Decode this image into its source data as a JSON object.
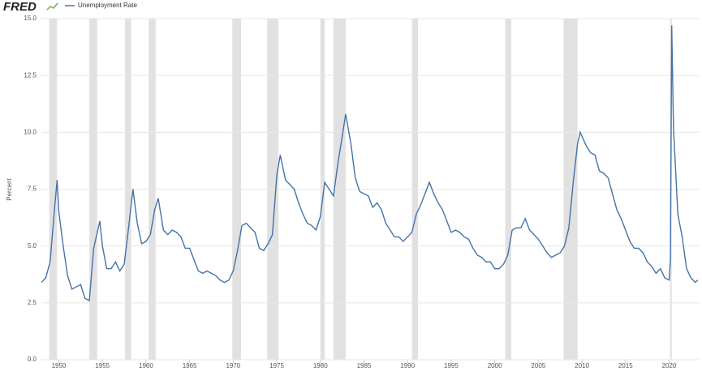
{
  "chart_data": {
    "type": "line",
    "logo": "FRED",
    "y_label": "Percent",
    "xlim": [
      1948,
      2023.4
    ],
    "ylim": [
      0,
      15
    ],
    "xticks": [
      1950,
      1955,
      1960,
      1965,
      1970,
      1975,
      1980,
      1985,
      1990,
      1995,
      2000,
      2005,
      2010,
      2015,
      2020
    ],
    "yticks": [
      {
        "value": 0,
        "label": "0.0"
      },
      {
        "value": 2.5,
        "label": "2.5"
      },
      {
        "value": 5,
        "label": "5.0"
      },
      {
        "value": 7.5,
        "label": "7.5"
      },
      {
        "value": 10,
        "label": "10.0"
      },
      {
        "value": 12.5,
        "label": "12.5"
      },
      {
        "value": 15,
        "label": "15.0"
      }
    ],
    "grid": true,
    "recession_color": "#e1e1e1",
    "recessions": [
      [
        1948.9,
        1949.8
      ],
      [
        1953.5,
        1954.4
      ],
      [
        1957.6,
        1958.3
      ],
      [
        1960.3,
        1961.1
      ],
      [
        1969.9,
        1970.9
      ],
      [
        1973.9,
        1975.2
      ],
      [
        1980.0,
        1980.5
      ],
      [
        1981.5,
        1982.9
      ],
      [
        1990.5,
        1991.2
      ],
      [
        2001.2,
        2001.9
      ],
      [
        2007.9,
        2009.5
      ],
      [
        2020.1,
        2020.3
      ]
    ],
    "series": [
      {
        "name": "Unemployment Rate",
        "color": "#4572a7",
        "x": [
          1948.0,
          1948.5,
          1949.0,
          1949.5,
          1949.8,
          1950.0,
          1950.5,
          1951.0,
          1951.5,
          1952.0,
          1952.5,
          1953.0,
          1953.5,
          1954.0,
          1954.7,
          1955.0,
          1955.5,
          1956.0,
          1956.5,
          1957.0,
          1957.5,
          1958.0,
          1958.5,
          1959.0,
          1959.5,
          1960.0,
          1960.5,
          1961.0,
          1961.4,
          1962.0,
          1962.5,
          1963.0,
          1963.5,
          1964.0,
          1964.5,
          1965.0,
          1965.5,
          1966.0,
          1966.5,
          1967.0,
          1967.5,
          1968.0,
          1968.5,
          1969.0,
          1969.5,
          1970.0,
          1970.5,
          1971.0,
          1971.5,
          1972.0,
          1972.5,
          1973.0,
          1973.5,
          1974.0,
          1974.5,
          1975.0,
          1975.4,
          1976.0,
          1976.5,
          1977.0,
          1977.5,
          1978.0,
          1978.5,
          1979.0,
          1979.5,
          1980.0,
          1980.5,
          1981.0,
          1981.5,
          1982.0,
          1982.5,
          1982.9,
          1983.5,
          1984.0,
          1984.5,
          1985.0,
          1985.5,
          1986.0,
          1986.5,
          1987.0,
          1987.5,
          1988.0,
          1988.5,
          1989.0,
          1989.5,
          1990.0,
          1990.5,
          1991.0,
          1991.5,
          1992.0,
          1992.5,
          1993.0,
          1993.5,
          1994.0,
          1994.5,
          1995.0,
          1995.5,
          1996.0,
          1996.5,
          1997.0,
          1997.5,
          1998.0,
          1998.5,
          1999.0,
          1999.5,
          2000.0,
          2000.5,
          2001.0,
          2001.5,
          2002.0,
          2002.5,
          2003.0,
          2003.5,
          2004.0,
          2004.5,
          2005.0,
          2005.5,
          2006.0,
          2006.5,
          2007.0,
          2007.5,
          2008.0,
          2008.5,
          2009.0,
          2009.5,
          2009.8,
          2010.5,
          2011.0,
          2011.5,
          2012.0,
          2012.5,
          2013.0,
          2013.5,
          2014.0,
          2014.5,
          2015.0,
          2015.5,
          2016.0,
          2016.5,
          2017.0,
          2017.5,
          2018.0,
          2018.5,
          2019.0,
          2019.5,
          2020.0,
          2020.15,
          2020.3,
          2020.5,
          2021.0,
          2021.5,
          2022.0,
          2022.5,
          2023.0,
          2023.3
        ],
        "values": [
          3.4,
          3.6,
          4.3,
          6.6,
          7.9,
          6.5,
          5.0,
          3.7,
          3.1,
          3.2,
          3.3,
          2.7,
          2.6,
          4.9,
          6.1,
          5.0,
          4.0,
          4.0,
          4.3,
          3.9,
          4.2,
          5.8,
          7.5,
          6.0,
          5.1,
          5.2,
          5.5,
          6.6,
          7.1,
          5.7,
          5.5,
          5.7,
          5.6,
          5.4,
          4.9,
          4.9,
          4.4,
          3.9,
          3.8,
          3.9,
          3.8,
          3.7,
          3.5,
          3.4,
          3.5,
          3.9,
          4.8,
          5.9,
          6.0,
          5.8,
          5.6,
          4.9,
          4.8,
          5.1,
          5.5,
          8.1,
          9.0,
          7.9,
          7.7,
          7.5,
          6.9,
          6.4,
          6.0,
          5.9,
          5.7,
          6.3,
          7.8,
          7.5,
          7.2,
          8.6,
          9.8,
          10.8,
          9.5,
          8.0,
          7.4,
          7.3,
          7.2,
          6.7,
          6.9,
          6.6,
          6.0,
          5.7,
          5.4,
          5.4,
          5.2,
          5.4,
          5.6,
          6.4,
          6.8,
          7.3,
          7.8,
          7.3,
          6.9,
          6.6,
          6.1,
          5.6,
          5.7,
          5.6,
          5.4,
          5.3,
          4.9,
          4.6,
          4.5,
          4.3,
          4.3,
          4.0,
          4.0,
          4.2,
          4.6,
          5.7,
          5.8,
          5.8,
          6.2,
          5.7,
          5.5,
          5.3,
          5.0,
          4.7,
          4.5,
          4.6,
          4.7,
          5.0,
          5.8,
          7.8,
          9.5,
          10.0,
          9.4,
          9.1,
          9.0,
          8.3,
          8.2,
          8.0,
          7.3,
          6.6,
          6.2,
          5.7,
          5.2,
          4.9,
          4.9,
          4.7,
          4.3,
          4.1,
          3.8,
          4.0,
          3.6,
          3.5,
          4.4,
          14.7,
          10.2,
          6.4,
          5.4,
          4.0,
          3.6,
          3.4,
          3.5
        ]
      }
    ]
  }
}
